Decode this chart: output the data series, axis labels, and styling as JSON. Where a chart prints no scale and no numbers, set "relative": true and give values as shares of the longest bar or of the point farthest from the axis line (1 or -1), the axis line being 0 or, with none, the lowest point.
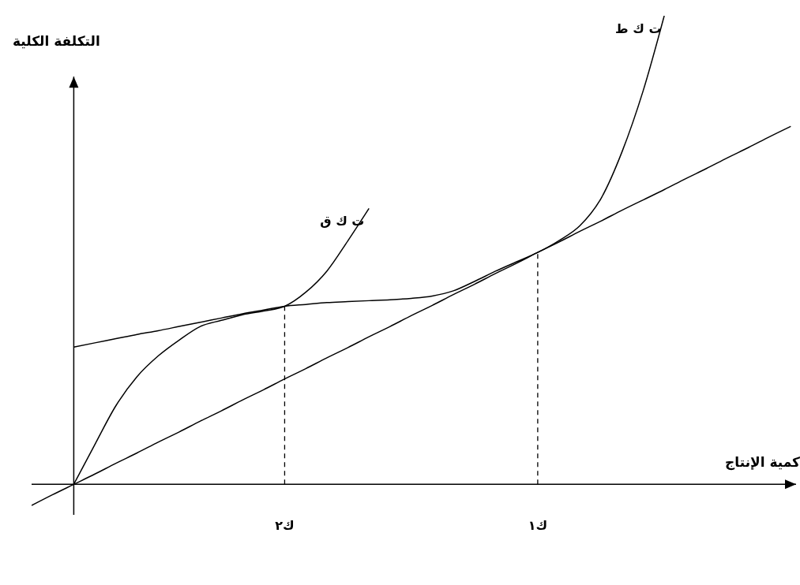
{
  "chart_data": {
    "type": "line",
    "relative": true,
    "xlabel": "كمية الإنتاج",
    "ylabel": "التكلفة الكلية",
    "marker": "none",
    "categories": [
      null,
      null,
      null,
      null,
      null,
      null,
      null,
      null,
      null,
      null,
      null,
      null,
      "ك٢",
      null,
      null,
      null,
      null,
      null,
      null,
      null,
      null,
      null,
      null,
      null,
      "ك١",
      null,
      null,
      null,
      null,
      null,
      null,
      null,
      null,
      null,
      null,
      null,
      null
    ],
    "ref_lines": [
      {
        "axis": "x",
        "value": "ك٢",
        "line_style": "dashed",
        "color": "#000000"
      },
      {
        "axis": "x",
        "value": "ك١",
        "line_style": "dashed",
        "color": "#000000"
      }
    ],
    "series": [
      {
        "name": "ت ك ق",
        "color": "#000000",
        "values": [
          null,
          null,
          0,
          0.085,
          0.168,
          0.23,
          0.274,
          0.308,
          0.337,
          0.35,
          0.362,
          0.37,
          0.38,
          0.41,
          0.455,
          0.52,
          0.589,
          null,
          null,
          null,
          null,
          null,
          null,
          null,
          null,
          null,
          null,
          null,
          null,
          null,
          null,
          null,
          null,
          null,
          null,
          null,
          null
        ]
      },
      {
        "name": "ت ك ط",
        "color": "#000000",
        "values": [
          null,
          null,
          0.293,
          0.302,
          0.311,
          0.32,
          0.328,
          0.337,
          0.346,
          0.355,
          0.364,
          0.372,
          0.38,
          0.384,
          0.388,
          0.39,
          0.392,
          0.394,
          0.397,
          0.402,
          0.413,
          0.433,
          0.455,
          0.475,
          0.495,
          0.52,
          0.552,
          0.61,
          0.71,
          0.84,
          1,
          null,
          null,
          null,
          null,
          null,
          null
        ]
      },
      {
        "color": "#000000",
        "values": [
          -0.045,
          -0.022,
          0,
          0.022,
          0.045,
          0.067,
          0.09,
          0.112,
          0.135,
          0.157,
          0.18,
          0.202,
          0.225,
          0.247,
          0.27,
          0.292,
          0.315,
          0.337,
          0.36,
          0.382,
          0.405,
          0.427,
          0.45,
          0.472,
          0.495,
          0.517,
          0.54,
          0.562,
          0.585,
          0.607,
          0.629,
          0.652,
          0.674,
          0.697,
          0.719,
          0.742,
          0.764
        ]
      }
    ]
  }
}
